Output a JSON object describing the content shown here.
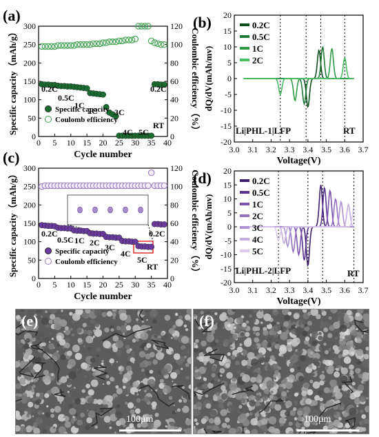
{
  "chart_data": [
    {
      "id": "a",
      "type": "scatter",
      "panel_label": "(a)",
      "xlabel": "Cycle number",
      "ylabel": "Specific capacity（mAh/g）",
      "y2label": "Coulombic efficiency（%）",
      "xlim": [
        0,
        40
      ],
      "ylim": [
        0,
        300
      ],
      "y2lim": [
        0,
        120
      ],
      "xticks": [
        0,
        5,
        10,
        15,
        20,
        25,
        30,
        35,
        40
      ],
      "yticks": [
        0,
        50,
        100,
        150,
        200,
        250,
        300
      ],
      "y2ticks": [
        0,
        20,
        40,
        60,
        80,
        100,
        120
      ],
      "series": [
        {
          "name": "Specific capacity",
          "axis": "left",
          "color": "#1a6b2f",
          "filled": true,
          "x": [
            1,
            2,
            3,
            4,
            5,
            6,
            7,
            8,
            9,
            10,
            11,
            12,
            13,
            14,
            15,
            16,
            17,
            18,
            19,
            20,
            21,
            22,
            23,
            24,
            25,
            26,
            27,
            28,
            29,
            30,
            31,
            32,
            33,
            34,
            35,
            36,
            37,
            38,
            39
          ],
          "y": [
            142,
            141,
            141,
            140,
            140,
            138,
            137,
            137,
            136,
            136,
            135,
            134,
            133,
            132,
            131,
            118,
            117,
            116,
            115,
            114,
            80,
            65,
            60,
            55,
            2,
            2,
            2,
            2,
            2,
            2,
            2,
            2,
            2,
            2,
            2,
            142,
            142,
            141,
            141
          ]
        },
        {
          "name": "Coulomb efficiency",
          "axis": "right",
          "color": "#3aa04a",
          "filled": false,
          "x": [
            1,
            2,
            3,
            4,
            5,
            6,
            7,
            8,
            9,
            10,
            11,
            12,
            13,
            14,
            15,
            16,
            17,
            18,
            19,
            20,
            21,
            22,
            23,
            24,
            25,
            26,
            27,
            28,
            29,
            30,
            31,
            32,
            33,
            34,
            35,
            36,
            37,
            38,
            39
          ],
          "y": [
            98,
            98,
            98,
            98,
            98,
            99,
            99,
            99,
            99,
            99,
            99,
            100,
            100,
            100,
            100,
            100,
            101,
            101,
            101,
            102,
            102,
            103,
            103,
            103,
            104,
            104,
            105,
            105,
            105,
            106,
            120,
            120,
            120,
            120,
            104,
            102,
            101,
            100,
            100
          ]
        }
      ],
      "annotations": [
        "0.2C",
        "0.5C",
        "1C",
        "2C",
        "3C",
        "4C",
        "5C",
        "RT",
        "0.2C"
      ],
      "legend_position": "bottom-left"
    },
    {
      "id": "b",
      "type": "line",
      "panel_label": "(b)",
      "xlabel": "Voltage(V)",
      "ylabel": "dQ/dV(mAh/mv)",
      "xlim": [
        3.0,
        3.7
      ],
      "ylim": [
        -20,
        20
      ],
      "xticks": [
        3.0,
        3.1,
        3.2,
        3.3,
        3.4,
        3.5,
        3.6,
        3.7
      ],
      "yticks": [
        -20,
        -15,
        -10,
        -5,
        0,
        5,
        10,
        15,
        20
      ],
      "vlines": [
        3.25,
        3.39,
        3.47,
        3.6
      ],
      "series": [
        {
          "name": "0.2C",
          "color": "#0b4d1c",
          "ox": 3.4,
          "ov": -9,
          "rx": 3.46,
          "rv": 9
        },
        {
          "name": "0.5C",
          "color": "#1e7a34",
          "ox": 3.38,
          "ov": -8,
          "rx": 3.48,
          "rv": 10
        },
        {
          "name": "1C",
          "color": "#2e9b44",
          "ox": 3.33,
          "ov": -7,
          "rx": 3.53,
          "rv": 9.5
        },
        {
          "name": "2C",
          "color": "#48c062",
          "ox": 3.25,
          "ov": -5,
          "rx": 3.6,
          "rv": 6.5
        }
      ],
      "annotations": [
        "Li|PHL-1|LFP",
        "RT"
      ],
      "legend_position": "top-left"
    },
    {
      "id": "c",
      "type": "scatter",
      "panel_label": "(c)",
      "xlabel": "Cycle number",
      "ylabel": "Specific capacity（mAh/g）",
      "y2label": "Coulombic efficiency（%）",
      "xlim": [
        0,
        40
      ],
      "ylim": [
        0,
        300
      ],
      "y2lim": [
        0,
        120
      ],
      "xticks": [
        0,
        5,
        10,
        15,
        20,
        25,
        30,
        35,
        40
      ],
      "yticks": [
        0,
        50,
        100,
        150,
        200,
        250,
        300
      ],
      "y2ticks": [
        0,
        20,
        40,
        60,
        80,
        100,
        120
      ],
      "series": [
        {
          "name": "Specific capacity",
          "axis": "left",
          "color": "#6a3a9e",
          "filled": true,
          "x": [
            1,
            2,
            3,
            4,
            5,
            6,
            7,
            8,
            9,
            10,
            11,
            12,
            13,
            14,
            15,
            16,
            17,
            18,
            19,
            20,
            21,
            22,
            23,
            24,
            25,
            26,
            27,
            28,
            29,
            30,
            31,
            32,
            33,
            34,
            35,
            36,
            37,
            38,
            39
          ],
          "y": [
            145,
            144,
            143,
            143,
            142,
            138,
            137,
            137,
            136,
            136,
            131,
            130,
            130,
            129,
            129,
            123,
            122,
            122,
            121,
            121,
            113,
            112,
            112,
            111,
            111,
            102,
            101,
            101,
            100,
            100,
            88,
            87,
            87,
            86,
            86,
            148,
            148,
            147,
            147
          ]
        },
        {
          "name": "Coulomb efficiency",
          "axis": "right",
          "color": "#9b7ac4",
          "filled": false,
          "x": [
            1,
            2,
            3,
            4,
            5,
            6,
            7,
            8,
            9,
            10,
            11,
            12,
            13,
            14,
            15,
            16,
            17,
            18,
            19,
            20,
            21,
            22,
            23,
            24,
            25,
            26,
            27,
            28,
            29,
            30,
            31,
            32,
            33,
            34,
            35,
            36,
            37,
            38,
            39
          ],
          "y": [
            100,
            101,
            101,
            101,
            101,
            101,
            101,
            101,
            101,
            101,
            101,
            101,
            101,
            101,
            101,
            101,
            101,
            101,
            101,
            101,
            101,
            101,
            101,
            101,
            101,
            101,
            101,
            101,
            101,
            101,
            101,
            101,
            101,
            101,
            115,
            101,
            101,
            101,
            101
          ]
        }
      ],
      "annotations": [
        "0.2C",
        "0.5C",
        "1C",
        "2C",
        "3C",
        "4C",
        "5C",
        "RT",
        "0.2C"
      ],
      "legend_position": "bottom-left"
    },
    {
      "id": "d",
      "type": "line",
      "panel_label": "(d)",
      "xlabel": "Voltage(V)",
      "ylabel": "dQ/dV(mAh/mv)",
      "xlim": [
        3.0,
        3.7
      ],
      "ylim": [
        -20,
        20
      ],
      "xticks": [
        3.0,
        3.1,
        3.2,
        3.3,
        3.4,
        3.5,
        3.6,
        3.7
      ],
      "yticks": [
        -20,
        -15,
        -10,
        -5,
        0,
        5,
        10,
        15,
        20
      ],
      "vlines": [
        3.24,
        3.4,
        3.48,
        3.65
      ],
      "series": [
        {
          "name": "0.2C",
          "color": "#3d1c6b",
          "ox": 3.4,
          "ov": -14,
          "rx": 3.47,
          "rv": 15
        },
        {
          "name": "0.5C",
          "color": "#5a3290",
          "ox": 3.38,
          "ov": -12,
          "rx": 3.49,
          "rv": 14
        },
        {
          "name": "1C",
          "color": "#7a52ad",
          "ox": 3.35,
          "ov": -10,
          "rx": 3.52,
          "rv": 13
        },
        {
          "name": "2C",
          "color": "#946fc2",
          "ox": 3.32,
          "ov": -9,
          "rx": 3.55,
          "rv": 10
        },
        {
          "name": "3C",
          "color": "#ad8fd3",
          "ox": 3.29,
          "ov": -7,
          "rx": 3.58,
          "rv": 9
        },
        {
          "name": "4C",
          "color": "#c4ade2",
          "ox": 3.27,
          "ov": -6,
          "rx": 3.62,
          "rv": 8
        },
        {
          "name": "5C",
          "color": "#dccbef",
          "ox": 3.24,
          "ov": -5,
          "rx": 3.65,
          "rv": 7
        }
      ],
      "annotations": [
        "Li|PHL-2|LFP",
        "RT"
      ],
      "legend_position": "top-left"
    }
  ],
  "images": [
    {
      "label": "(e)",
      "scale_bar": "100μm"
    },
    {
      "label": "(f)",
      "scale_bar": "100μm"
    }
  ]
}
